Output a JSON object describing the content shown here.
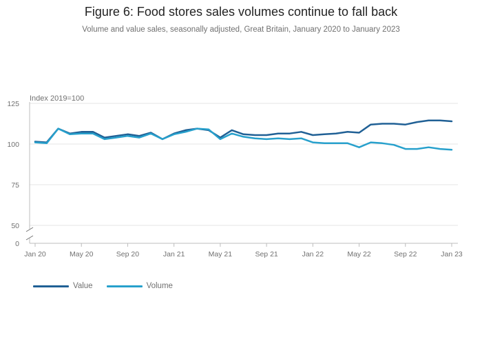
{
  "title": "Figure 6: Food stores sales volumes continue to fall back",
  "subtitle": "Volume and value sales, seasonally adjusted, Great Britain, January 2020 to January 2023",
  "chart_data": {
    "type": "line",
    "ylabel": "Index 2019=100",
    "y_ticks": [
      "125",
      "100",
      "75",
      "50",
      "0"
    ],
    "axis_break": "between 0 and 50",
    "x_tick_labels": [
      "Jan 20",
      "May 20",
      "Sep 20",
      "Jan 21",
      "May 21",
      "Sep 21",
      "Jan 22",
      "May 22",
      "Sep 22",
      "Jan 23"
    ],
    "x": [
      "Jan 2020",
      "Feb 2020",
      "Mar 2020",
      "Apr 2020",
      "May 2020",
      "Jun 2020",
      "Jul 2020",
      "Aug 2020",
      "Sep 2020",
      "Oct 2020",
      "Nov 2020",
      "Dec 2020",
      "Jan 2021",
      "Feb 2021",
      "Mar 2021",
      "Apr 2021",
      "May 2021",
      "Jun 2021",
      "Jul 2021",
      "Aug 2021",
      "Sep 2021",
      "Oct 2021",
      "Nov 2021",
      "Dec 2021",
      "Jan 2022",
      "Feb 2022",
      "Mar 2022",
      "Apr 2022",
      "May 2022",
      "Jun 2022",
      "Jul 2022",
      "Aug 2022",
      "Sep 2022",
      "Oct 2022",
      "Nov 2022",
      "Dec 2022",
      "Jan 2023"
    ],
    "series": [
      {
        "name": "Value",
        "color": "#206095",
        "values": [
          101.5,
          101.0,
          109.5,
          106.5,
          107.5,
          107.5,
          104.0,
          105.0,
          106.0,
          105.0,
          107.0,
          103.0,
          106.5,
          108.5,
          109.5,
          108.5,
          104.0,
          108.5,
          106.0,
          105.5,
          105.5,
          106.5,
          106.5,
          107.5,
          105.5,
          106.0,
          106.5,
          107.5,
          107.0,
          112.0,
          112.5,
          112.5,
          112.0,
          113.5,
          114.5,
          114.5,
          114.0
        ]
      },
      {
        "name": "Volume",
        "color": "#27a0cc",
        "values": [
          101.0,
          100.5,
          109.5,
          106.0,
          106.5,
          106.5,
          103.0,
          104.0,
          105.0,
          104.0,
          106.5,
          103.0,
          106.0,
          107.5,
          109.5,
          109.0,
          103.0,
          106.5,
          104.5,
          103.5,
          103.0,
          103.5,
          103.0,
          103.5,
          101.0,
          100.5,
          100.5,
          100.5,
          98.0,
          101.0,
          100.5,
          99.5,
          97.0,
          97.0,
          98.0,
          97.0,
          96.5
        ]
      }
    ],
    "grid": true,
    "legend_position": "bottom-left"
  },
  "legend": [
    {
      "label": "Value",
      "color": "#206095"
    },
    {
      "label": "Volume",
      "color": "#27a0cc"
    }
  ]
}
